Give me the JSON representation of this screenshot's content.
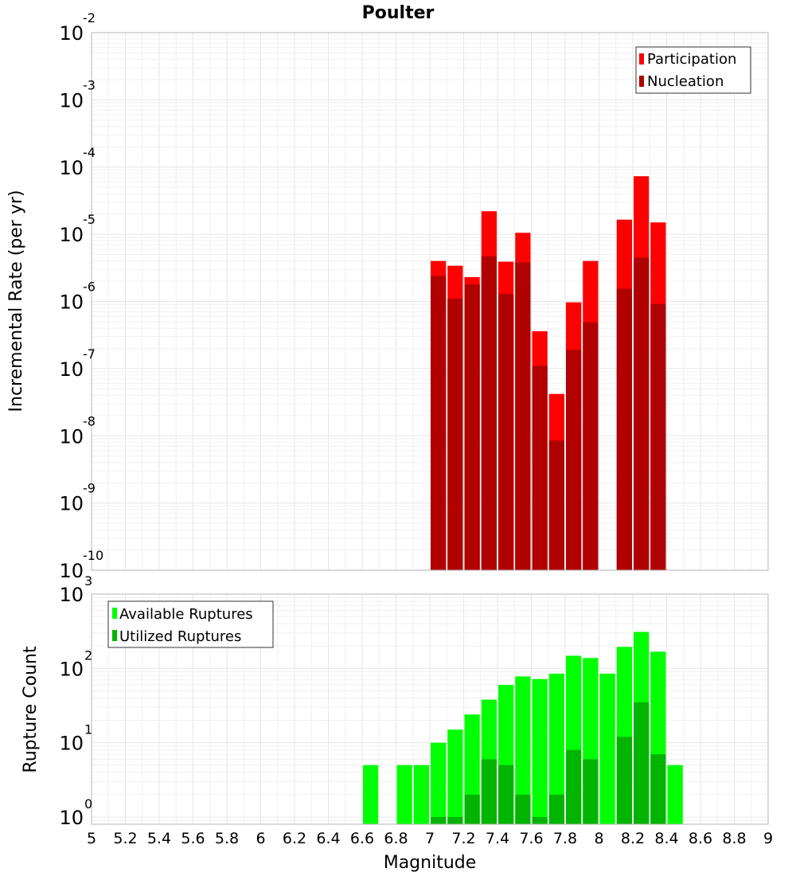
{
  "chart_data": [
    {
      "type": "bar",
      "title": "Poulter",
      "xlabel": "",
      "ylabel": "Incremental Rate (per yr)",
      "yscale": "log",
      "xlim": [
        5,
        9
      ],
      "ylim": [
        1e-10,
        0.01
      ],
      "y_ticks": [
        {
          "base": "10",
          "exp": "-10",
          "value": 1e-10
        },
        {
          "base": "10",
          "exp": "-9",
          "value": 1e-09
        },
        {
          "base": "10",
          "exp": "-8",
          "value": 1e-08
        },
        {
          "base": "10",
          "exp": "-7",
          "value": 1e-07
        },
        {
          "base": "10",
          "exp": "-6",
          "value": 1e-06
        },
        {
          "base": "10",
          "exp": "-5",
          "value": 1e-05
        },
        {
          "base": "10",
          "exp": "-4",
          "value": 0.0001
        },
        {
          "base": "10",
          "exp": "-3",
          "value": 0.001
        },
        {
          "base": "10",
          "exp": "-2",
          "value": 0.01
        }
      ],
      "grid": true,
      "legend_position": "top-right",
      "bar_width": 0.1,
      "series": [
        {
          "name": "Participation",
          "color": "#ff0000",
          "points": [
            {
              "x": 7.05,
              "y": 4e-06
            },
            {
              "x": 7.15,
              "y": 3.4e-06
            },
            {
              "x": 7.25,
              "y": 2.3e-06
            },
            {
              "x": 7.35,
              "y": 2.2e-05
            },
            {
              "x": 7.45,
              "y": 3.9e-06
            },
            {
              "x": 7.55,
              "y": 1.05e-05
            },
            {
              "x": 7.65,
              "y": 3.6e-07
            },
            {
              "x": 7.75,
              "y": 4.2e-08
            },
            {
              "x": 7.85,
              "y": 9.7e-07
            },
            {
              "x": 7.95,
              "y": 4e-06
            },
            {
              "x": 8.15,
              "y": 1.65e-05
            },
            {
              "x": 8.25,
              "y": 7.3e-05
            },
            {
              "x": 8.35,
              "y": 1.5e-05
            }
          ]
        },
        {
          "name": "Nucleation",
          "color": "#b00000",
          "points": [
            {
              "x": 7.05,
              "y": 2.4e-06
            },
            {
              "x": 7.15,
              "y": 1.1e-06
            },
            {
              "x": 7.25,
              "y": 1.8e-06
            },
            {
              "x": 7.35,
              "y": 4.7e-06
            },
            {
              "x": 7.45,
              "y": 1.3e-06
            },
            {
              "x": 7.55,
              "y": 3.8e-06
            },
            {
              "x": 7.65,
              "y": 1.1e-07
            },
            {
              "x": 7.75,
              "y": 8.5e-09
            },
            {
              "x": 7.85,
              "y": 1.9e-07
            },
            {
              "x": 7.95,
              "y": 4.9e-07
            },
            {
              "x": 8.15,
              "y": 1.55e-06
            },
            {
              "x": 8.25,
              "y": 4.5e-06
            },
            {
              "x": 8.35,
              "y": 9.2e-07
            }
          ]
        }
      ]
    },
    {
      "type": "bar",
      "title": "",
      "xlabel": "Magnitude",
      "ylabel": "Rupture Count",
      "yscale": "log",
      "xlim": [
        5,
        9
      ],
      "ylim": [
        0.8,
        1000
      ],
      "x_ticks": [
        "5",
        "5.2",
        "5.4",
        "5.6",
        "5.8",
        "6",
        "6.2",
        "6.4",
        "6.6",
        "6.8",
        "7",
        "7.2",
        "7.4",
        "7.6",
        "7.8",
        "8",
        "8.2",
        "8.4",
        "8.6",
        "8.8",
        "9"
      ],
      "y_ticks": [
        {
          "base": "10",
          "exp": "0",
          "value": 1
        },
        {
          "base": "10",
          "exp": "1",
          "value": 10
        },
        {
          "base": "10",
          "exp": "2",
          "value": 100
        },
        {
          "base": "10",
          "exp": "3",
          "value": 1000
        }
      ],
      "grid": true,
      "legend_position": "top-left",
      "bar_width": 0.1,
      "series": [
        {
          "name": "Available Ruptures",
          "color": "#00ff00",
          "points": [
            {
              "x": 6.65,
              "y": 5
            },
            {
              "x": 6.85,
              "y": 5
            },
            {
              "x": 6.95,
              "y": 5
            },
            {
              "x": 7.05,
              "y": 10
            },
            {
              "x": 7.15,
              "y": 15
            },
            {
              "x": 7.25,
              "y": 24
            },
            {
              "x": 7.35,
              "y": 38
            },
            {
              "x": 7.45,
              "y": 60
            },
            {
              "x": 7.55,
              "y": 78
            },
            {
              "x": 7.65,
              "y": 72
            },
            {
              "x": 7.75,
              "y": 85
            },
            {
              "x": 7.85,
              "y": 148
            },
            {
              "x": 7.95,
              "y": 138
            },
            {
              "x": 8.05,
              "y": 85
            },
            {
              "x": 8.15,
              "y": 195
            },
            {
              "x": 8.25,
              "y": 310
            },
            {
              "x": 8.35,
              "y": 168
            },
            {
              "x": 8.45,
              "y": 5
            }
          ]
        },
        {
          "name": "Utilized Ruptures",
          "color": "#00b400",
          "points": [
            {
              "x": 7.05,
              "y": 1
            },
            {
              "x": 7.15,
              "y": 1
            },
            {
              "x": 7.25,
              "y": 2
            },
            {
              "x": 7.35,
              "y": 6
            },
            {
              "x": 7.45,
              "y": 5
            },
            {
              "x": 7.55,
              "y": 2
            },
            {
              "x": 7.65,
              "y": 1
            },
            {
              "x": 7.75,
              "y": 2
            },
            {
              "x": 7.85,
              "y": 8
            },
            {
              "x": 7.95,
              "y": 6
            },
            {
              "x": 8.15,
              "y": 12
            },
            {
              "x": 8.25,
              "y": 35
            },
            {
              "x": 8.35,
              "y": 7
            }
          ]
        }
      ]
    }
  ]
}
